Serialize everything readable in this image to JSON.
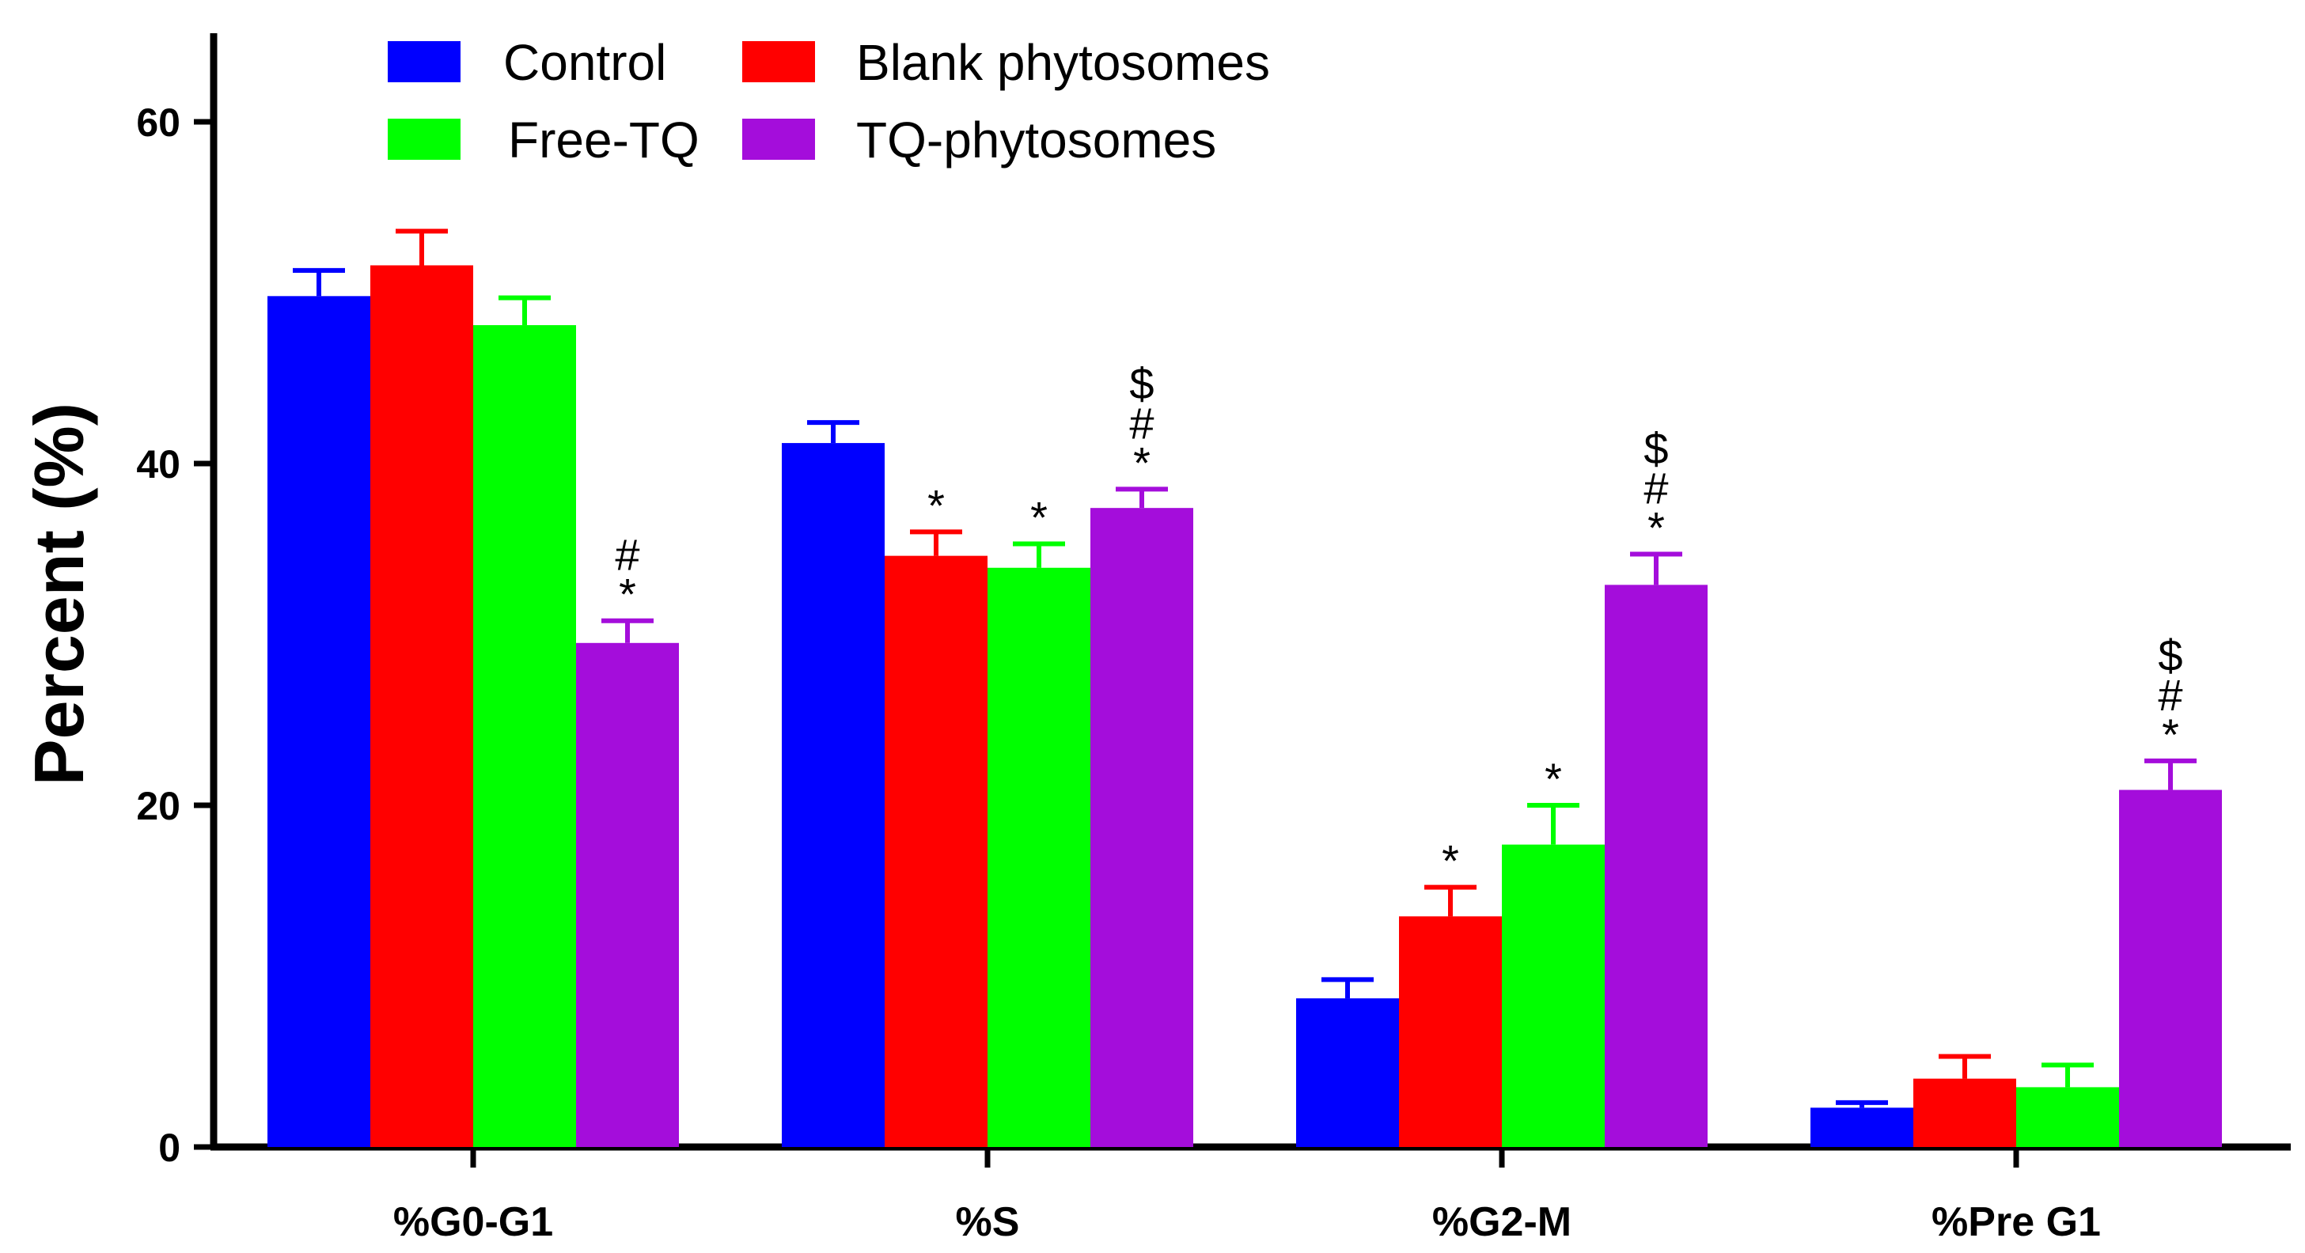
{
  "chart_data": {
    "type": "bar",
    "title": "",
    "xlabel": "",
    "ylabel": "Percent (%)",
    "ylim": [
      0,
      65
    ],
    "yticks": [
      "0",
      "20",
      "40",
      "60"
    ],
    "ytick_values": [
      0,
      20,
      40,
      60
    ],
    "categories": [
      "%G0-G1",
      "%S",
      "%G2-M",
      "%Pre G1"
    ],
    "series": [
      {
        "name": "Control",
        "color": "#0000ff",
        "values": [
          49.8,
          41.2,
          8.7,
          2.3
        ],
        "errors": [
          1.5,
          1.2,
          1.1,
          0.3
        ]
      },
      {
        "name": "Blank phytosomes",
        "color": "#ff0000",
        "values": [
          51.6,
          34.6,
          13.5,
          4.0
        ],
        "errors": [
          2.0,
          1.4,
          1.7,
          1.3
        ]
      },
      {
        "name": "Free-TQ",
        "color": "#00ff00",
        "values": [
          48.1,
          33.9,
          17.7,
          3.5
        ],
        "errors": [
          1.6,
          1.4,
          2.3,
          1.3
        ]
      },
      {
        "name": "TQ-phytosomes",
        "color": "#a40ddb",
        "values": [
          29.5,
          37.4,
          32.9,
          20.9
        ],
        "errors": [
          1.3,
          1.1,
          1.8,
          1.7
        ]
      }
    ],
    "annotations": [
      {
        "series": 3,
        "category": 0,
        "marks": [
          "#",
          "*"
        ]
      },
      {
        "series": 1,
        "category": 1,
        "marks": [
          "*"
        ]
      },
      {
        "series": 2,
        "category": 1,
        "marks": [
          "*"
        ]
      },
      {
        "series": 3,
        "category": 1,
        "marks": [
          "$",
          "#",
          "*"
        ]
      },
      {
        "series": 1,
        "category": 2,
        "marks": [
          "*"
        ]
      },
      {
        "series": 2,
        "category": 2,
        "marks": [
          "*"
        ]
      },
      {
        "series": 3,
        "category": 2,
        "marks": [
          "$",
          "#",
          "*"
        ]
      },
      {
        "series": 3,
        "category": 3,
        "marks": [
          "$",
          "#",
          "*"
        ]
      }
    ],
    "legend": {
      "placement": "top-left",
      "columns": 2
    }
  }
}
